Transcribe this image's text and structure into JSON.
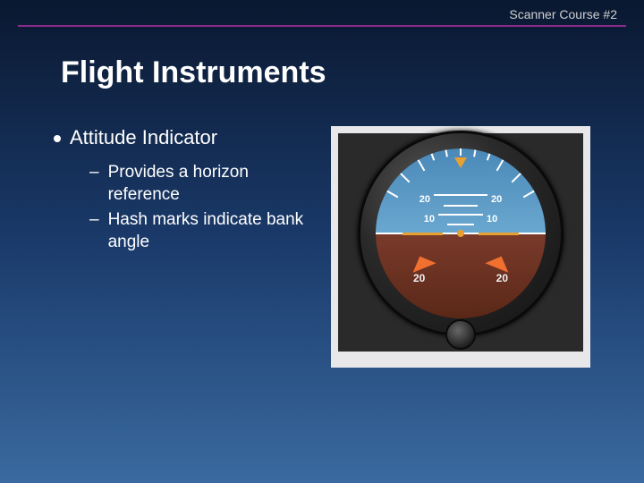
{
  "header": {
    "course": "Scanner Course #2"
  },
  "title": "Flight Instruments",
  "bullet": {
    "label": "Attitude Indicator"
  },
  "subs": [
    "Provides a horizon reference",
    "Hash marks indicate bank angle"
  ],
  "instrument": {
    "sky_labels": {
      "top_l": "20",
      "top_r": "20",
      "mid_l": "10",
      "mid_r": "10"
    },
    "gnd_labels": {
      "l": "20",
      "r": "20"
    },
    "colors": {
      "sky_top": "#4a88b8",
      "sky_bot": "#6aa8d0",
      "ground_top": "#7a3a2a",
      "ground_bot": "#5a2818",
      "symbol": "#e8a030",
      "chevron": "#f07030",
      "tick": "#ffffff"
    },
    "bank_ticks_deg": [
      -60,
      -45,
      -30,
      -20,
      -10,
      0,
      10,
      20,
      30,
      45,
      60
    ]
  }
}
